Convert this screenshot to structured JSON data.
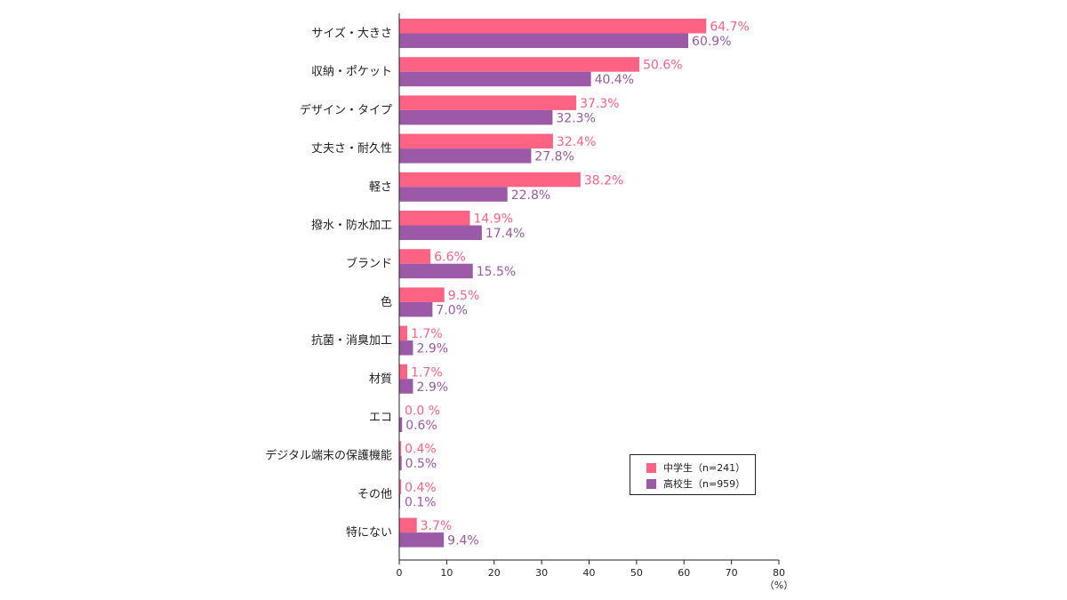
{
  "chart_data": {
    "type": "bar",
    "orientation": "horizontal",
    "categories": [
      "サイズ・大きさ",
      "収納・ポケット",
      "デザイン・タイプ",
      "丈夫さ・耐久性",
      "軽さ",
      "撥水・防水加工",
      "ブランド",
      "色",
      "抗菌・消臭加工",
      "材質",
      "エコ",
      "デジタル端末の保護機能",
      "その他",
      "特にない"
    ],
    "series": [
      {
        "name": "中学生（n=241）",
        "color": "#ff6384",
        "values": [
          64.7,
          50.6,
          37.3,
          32.4,
          38.2,
          14.9,
          6.6,
          9.5,
          1.7,
          1.7,
          0.0,
          0.4,
          0.4,
          3.7
        ],
        "labels": [
          "64.7%",
          "50.6%",
          "37.3%",
          "32.4%",
          "38.2%",
          "14.9%",
          "6.6%",
          "9.5%",
          "1.7%",
          "1.7%",
          "0.0 %",
          "0.4%",
          "0.4%",
          "3.7%"
        ]
      },
      {
        "name": "高校生（n=959）",
        "color": "#9b59a8",
        "values": [
          60.9,
          40.4,
          32.3,
          27.8,
          22.8,
          17.4,
          15.5,
          7.0,
          2.9,
          2.9,
          0.6,
          0.5,
          0.1,
          9.4
        ],
        "labels": [
          "60.9%",
          "40.4%",
          "32.3%",
          "27.8%",
          "22.8%",
          "17.4%",
          "15.5%",
          "7.0%",
          "2.9%",
          "2.9%",
          "0.6%",
          "0.5%",
          "0.1%",
          "9.4%"
        ]
      }
    ],
    "xlim": [
      0,
      80
    ],
    "xticks": [
      "0",
      "10",
      "20",
      "30",
      "40",
      "50",
      "60",
      "70",
      "80"
    ],
    "x_unit": "（%）",
    "legend_position": "bottom-right",
    "grid": false
  }
}
